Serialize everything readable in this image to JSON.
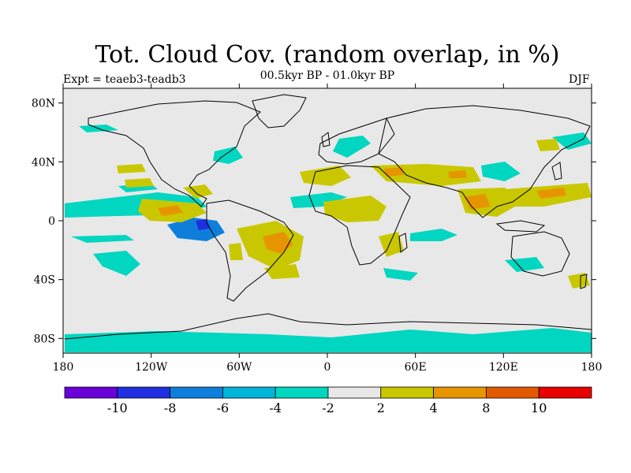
{
  "title": "Tot. Cloud Cov. (random overlap, in %)",
  "experiment": "Expt = teaeb3-teadb3",
  "period": "00.5kyr BP - 01.0kyr BP",
  "season": "DJF",
  "axes": {
    "lat_ticks": [
      "80N",
      "40N",
      "0",
      "40S",
      "80S"
    ],
    "lat_values": [
      80,
      40,
      0,
      -40,
      -80
    ],
    "lon_ticks": [
      "180",
      "120W",
      "60W",
      "0",
      "60E",
      "120E",
      "180"
    ],
    "lon_values": [
      -180,
      -120,
      -60,
      0,
      60,
      120,
      180
    ],
    "lat_range": [
      -90,
      90
    ],
    "lon_range": [
      -180,
      180
    ]
  },
  "colorbar": {
    "colors": [
      "#6a00d8",
      "#1f2fe0",
      "#0d7fdb",
      "#00b5d8",
      "#00d6c0",
      "#e8e8e8",
      "#c9c800",
      "#e69500",
      "#e25a00",
      "#e60000"
    ],
    "labels": [
      "-10",
      "-8",
      "-6",
      "-4",
      "-2",
      "2",
      "4",
      "8",
      "10"
    ]
  },
  "colors": {
    "background": "#e8e8e8",
    "cyan": "#00d6c0",
    "yellow": "#c9c800",
    "orange": "#e69500",
    "blue": "#0d7fdb",
    "darkblue": "#1f2fe0"
  }
}
